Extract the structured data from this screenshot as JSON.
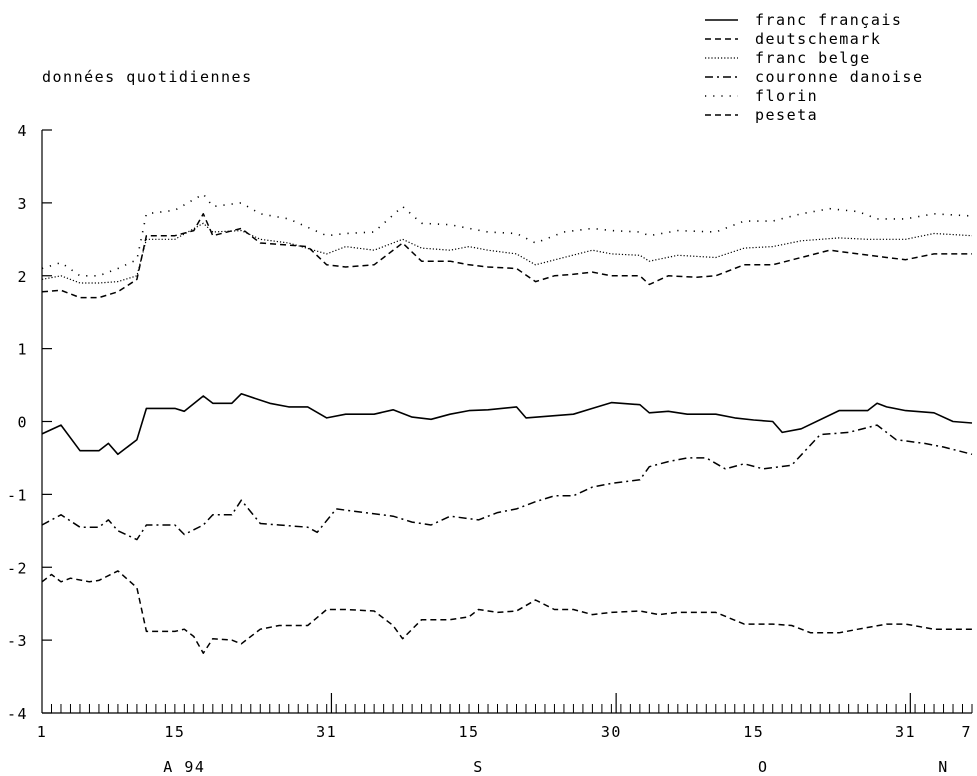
{
  "chart_data": {
    "type": "line",
    "subtitle": "données quotidiennes",
    "x_day_ticks": [
      "1",
      "15",
      "31",
      "15",
      "30",
      "15",
      "31",
      "7"
    ],
    "x_month_labels": [
      "A 94",
      "S",
      "O",
      "N"
    ],
    "y_tick_labels": [
      "4",
      "3",
      "2",
      "1",
      "0",
      "-1",
      "-2",
      "-3",
      "-4"
    ],
    "ylim": [
      -4,
      4
    ],
    "grid": false,
    "legend_position": "top-right",
    "x_start_date": "1994-08-01",
    "x_end_date": "1994-11-07",
    "series": [
      {
        "name": "franc français",
        "line_style": "solid",
        "points": [
          [
            "1994-08-01",
            -0.17
          ],
          [
            "1994-08-03",
            -0.05
          ],
          [
            "1994-08-05",
            -0.4
          ],
          [
            "1994-08-07",
            -0.4
          ],
          [
            "1994-08-08",
            -0.3
          ],
          [
            "1994-08-09",
            -0.45
          ],
          [
            "1994-08-11",
            -0.25
          ],
          [
            "1994-08-12",
            0.18
          ],
          [
            "1994-08-15",
            0.18
          ],
          [
            "1994-08-16",
            0.14
          ],
          [
            "1994-08-18",
            0.35
          ],
          [
            "1994-08-19",
            0.25
          ],
          [
            "1994-08-21",
            0.25
          ],
          [
            "1994-08-22",
            0.38
          ],
          [
            "1994-08-25",
            0.25
          ],
          [
            "1994-08-27",
            0.2
          ],
          [
            "1994-08-29",
            0.2
          ],
          [
            "1994-08-31",
            0.05
          ],
          [
            "1994-09-02",
            0.1
          ],
          [
            "1994-09-05",
            0.1
          ],
          [
            "1994-09-07",
            0.16
          ],
          [
            "1994-09-09",
            0.06
          ],
          [
            "1994-09-11",
            0.03
          ],
          [
            "1994-09-13",
            0.1
          ],
          [
            "1994-09-15",
            0.15
          ],
          [
            "1994-09-17",
            0.16
          ],
          [
            "1994-09-20",
            0.2
          ],
          [
            "1994-09-21",
            0.05
          ],
          [
            "1994-09-24",
            0.08
          ],
          [
            "1994-09-26",
            0.1
          ],
          [
            "1994-09-28",
            0.18
          ],
          [
            "1994-09-30",
            0.26
          ],
          [
            "1994-10-03",
            0.23
          ],
          [
            "1994-10-04",
            0.12
          ],
          [
            "1994-10-06",
            0.14
          ],
          [
            "1994-10-08",
            0.1
          ],
          [
            "1994-10-11",
            0.1
          ],
          [
            "1994-10-13",
            0.05
          ],
          [
            "1994-10-15",
            0.02
          ],
          [
            "1994-10-17",
            0.0
          ],
          [
            "1994-10-18",
            -0.15
          ],
          [
            "1994-10-20",
            -0.1
          ],
          [
            "1994-10-24",
            0.15
          ],
          [
            "1994-10-27",
            0.15
          ],
          [
            "1994-10-28",
            0.25
          ],
          [
            "1994-10-29",
            0.2
          ],
          [
            "1994-10-31",
            0.15
          ],
          [
            "1994-11-03",
            0.12
          ],
          [
            "1994-11-05",
            0.0
          ],
          [
            "1994-11-07",
            -0.02
          ]
        ]
      },
      {
        "name": "deutschemark",
        "line_style": "dashed",
        "points": [
          [
            "1994-08-01",
            1.78
          ],
          [
            "1994-08-03",
            1.8
          ],
          [
            "1994-08-05",
            1.7
          ],
          [
            "1994-08-07",
            1.7
          ],
          [
            "1994-08-09",
            1.78
          ],
          [
            "1994-08-11",
            1.95
          ],
          [
            "1994-08-12",
            2.55
          ],
          [
            "1994-08-15",
            2.55
          ],
          [
            "1994-08-17",
            2.62
          ],
          [
            "1994-08-18",
            2.85
          ],
          [
            "1994-08-19",
            2.55
          ],
          [
            "1994-08-22",
            2.65
          ],
          [
            "1994-08-24",
            2.45
          ],
          [
            "1994-08-27",
            2.42
          ],
          [
            "1994-08-29",
            2.4
          ],
          [
            "1994-08-31",
            2.15
          ],
          [
            "1994-09-02",
            2.12
          ],
          [
            "1994-09-05",
            2.15
          ],
          [
            "1994-09-08",
            2.45
          ],
          [
            "1994-09-10",
            2.2
          ],
          [
            "1994-09-13",
            2.2
          ],
          [
            "1994-09-15",
            2.15
          ],
          [
            "1994-09-17",
            2.12
          ],
          [
            "1994-09-20",
            2.1
          ],
          [
            "1994-09-22",
            1.92
          ],
          [
            "1994-09-24",
            2.0
          ],
          [
            "1994-09-26",
            2.02
          ],
          [
            "1994-09-28",
            2.05
          ],
          [
            "1994-09-30",
            2.0
          ],
          [
            "1994-10-03",
            2.0
          ],
          [
            "1994-10-04",
            1.88
          ],
          [
            "1994-10-06",
            2.0
          ],
          [
            "1994-10-09",
            1.98
          ],
          [
            "1994-10-11",
            2.0
          ],
          [
            "1994-10-14",
            2.15
          ],
          [
            "1994-10-17",
            2.15
          ],
          [
            "1994-10-20",
            2.25
          ],
          [
            "1994-10-23",
            2.35
          ],
          [
            "1994-10-26",
            2.3
          ],
          [
            "1994-10-29",
            2.25
          ],
          [
            "1994-10-31",
            2.22
          ],
          [
            "1994-11-03",
            2.3
          ],
          [
            "1994-11-07",
            2.3
          ]
        ]
      },
      {
        "name": "franc belge",
        "line_style": "dense-dotted",
        "points": [
          [
            "1994-08-01",
            1.95
          ],
          [
            "1994-08-03",
            2.0
          ],
          [
            "1994-08-05",
            1.9
          ],
          [
            "1994-08-07",
            1.9
          ],
          [
            "1994-08-09",
            1.92
          ],
          [
            "1994-08-11",
            2.0
          ],
          [
            "1994-08-12",
            2.5
          ],
          [
            "1994-08-15",
            2.5
          ],
          [
            "1994-08-18",
            2.72
          ],
          [
            "1994-08-19",
            2.6
          ],
          [
            "1994-08-22",
            2.62
          ],
          [
            "1994-08-24",
            2.5
          ],
          [
            "1994-08-27",
            2.45
          ],
          [
            "1994-08-31",
            2.3
          ],
          [
            "1994-09-02",
            2.4
          ],
          [
            "1994-09-05",
            2.35
          ],
          [
            "1994-09-08",
            2.5
          ],
          [
            "1994-09-10",
            2.38
          ],
          [
            "1994-09-13",
            2.35
          ],
          [
            "1994-09-15",
            2.4
          ],
          [
            "1994-09-17",
            2.35
          ],
          [
            "1994-09-20",
            2.3
          ],
          [
            "1994-09-22",
            2.15
          ],
          [
            "1994-09-25",
            2.25
          ],
          [
            "1994-09-28",
            2.35
          ],
          [
            "1994-09-30",
            2.3
          ],
          [
            "1994-10-03",
            2.28
          ],
          [
            "1994-10-04",
            2.2
          ],
          [
            "1994-10-07",
            2.28
          ],
          [
            "1994-10-11",
            2.25
          ],
          [
            "1994-10-14",
            2.38
          ],
          [
            "1994-10-17",
            2.4
          ],
          [
            "1994-10-20",
            2.48
          ],
          [
            "1994-10-24",
            2.52
          ],
          [
            "1994-10-27",
            2.5
          ],
          [
            "1994-10-31",
            2.5
          ],
          [
            "1994-11-03",
            2.58
          ],
          [
            "1994-11-07",
            2.55
          ]
        ]
      },
      {
        "name": "couronne danoise",
        "line_style": "dash-dot",
        "points": [
          [
            "1994-08-01",
            -1.42
          ],
          [
            "1994-08-03",
            -1.28
          ],
          [
            "1994-08-05",
            -1.45
          ],
          [
            "1994-08-07",
            -1.45
          ],
          [
            "1994-08-08",
            -1.35
          ],
          [
            "1994-08-09",
            -1.5
          ],
          [
            "1994-08-11",
            -1.62
          ],
          [
            "1994-08-12",
            -1.42
          ],
          [
            "1994-08-15",
            -1.42
          ],
          [
            "1994-08-16",
            -1.55
          ],
          [
            "1994-08-18",
            -1.42
          ],
          [
            "1994-08-19",
            -1.28
          ],
          [
            "1994-08-21",
            -1.28
          ],
          [
            "1994-08-22",
            -1.08
          ],
          [
            "1994-08-24",
            -1.4
          ],
          [
            "1994-08-26",
            -1.42
          ],
          [
            "1994-08-29",
            -1.45
          ],
          [
            "1994-08-30",
            -1.52
          ],
          [
            "1994-09-01",
            -1.2
          ],
          [
            "1994-09-04",
            -1.25
          ],
          [
            "1994-09-07",
            -1.3
          ],
          [
            "1994-09-09",
            -1.38
          ],
          [
            "1994-09-11",
            -1.42
          ],
          [
            "1994-09-13",
            -1.3
          ],
          [
            "1994-09-16",
            -1.35
          ],
          [
            "1994-09-18",
            -1.25
          ],
          [
            "1994-09-20",
            -1.2
          ],
          [
            "1994-09-22",
            -1.1
          ],
          [
            "1994-09-24",
            -1.02
          ],
          [
            "1994-09-26",
            -1.02
          ],
          [
            "1994-09-28",
            -0.9
          ],
          [
            "1994-09-30",
            -0.85
          ],
          [
            "1994-10-03",
            -0.8
          ],
          [
            "1994-10-04",
            -0.62
          ],
          [
            "1994-10-06",
            -0.55
          ],
          [
            "1994-10-08",
            -0.5
          ],
          [
            "1994-10-10",
            -0.5
          ],
          [
            "1994-10-12",
            -0.65
          ],
          [
            "1994-10-14",
            -0.58
          ],
          [
            "1994-10-16",
            -0.65
          ],
          [
            "1994-10-19",
            -0.6
          ],
          [
            "1994-10-22",
            -0.18
          ],
          [
            "1994-10-25",
            -0.15
          ],
          [
            "1994-10-28",
            -0.05
          ],
          [
            "1994-10-30",
            -0.25
          ],
          [
            "1994-11-02",
            -0.3
          ],
          [
            "1994-11-04",
            -0.35
          ],
          [
            "1994-11-07",
            -0.45
          ]
        ]
      },
      {
        "name": "florin",
        "line_style": "sparse-dotted",
        "points": [
          [
            "1994-08-01",
            2.1
          ],
          [
            "1994-08-03",
            2.18
          ],
          [
            "1994-08-05",
            2.0
          ],
          [
            "1994-08-07",
            2.0
          ],
          [
            "1994-08-09",
            2.1
          ],
          [
            "1994-08-11",
            2.22
          ],
          [
            "1994-08-12",
            2.85
          ],
          [
            "1994-08-15",
            2.9
          ],
          [
            "1994-08-18",
            3.12
          ],
          [
            "1994-08-19",
            2.95
          ],
          [
            "1994-08-22",
            3.0
          ],
          [
            "1994-08-24",
            2.85
          ],
          [
            "1994-08-27",
            2.78
          ],
          [
            "1994-08-31",
            2.55
          ],
          [
            "1994-09-02",
            2.58
          ],
          [
            "1994-09-05",
            2.6
          ],
          [
            "1994-09-08",
            2.95
          ],
          [
            "1994-09-10",
            2.72
          ],
          [
            "1994-09-13",
            2.7
          ],
          [
            "1994-09-15",
            2.65
          ],
          [
            "1994-09-17",
            2.6
          ],
          [
            "1994-09-20",
            2.58
          ],
          [
            "1994-09-22",
            2.45
          ],
          [
            "1994-09-25",
            2.6
          ],
          [
            "1994-09-28",
            2.65
          ],
          [
            "1994-09-30",
            2.62
          ],
          [
            "1994-10-03",
            2.6
          ],
          [
            "1994-10-04",
            2.55
          ],
          [
            "1994-10-07",
            2.62
          ],
          [
            "1994-10-11",
            2.6
          ],
          [
            "1994-10-14",
            2.75
          ],
          [
            "1994-10-17",
            2.75
          ],
          [
            "1994-10-20",
            2.85
          ],
          [
            "1994-10-23",
            2.92
          ],
          [
            "1994-10-26",
            2.88
          ],
          [
            "1994-10-28",
            2.78
          ],
          [
            "1994-10-31",
            2.78
          ],
          [
            "1994-11-03",
            2.85
          ],
          [
            "1994-11-07",
            2.82
          ]
        ]
      },
      {
        "name": "peseta",
        "line_style": "dashed",
        "points": [
          [
            "1994-08-01",
            -2.2
          ],
          [
            "1994-08-02",
            -2.1
          ],
          [
            "1994-08-03",
            -2.2
          ],
          [
            "1994-08-04",
            -2.15
          ],
          [
            "1994-08-06",
            -2.2
          ],
          [
            "1994-08-07",
            -2.18
          ],
          [
            "1994-08-09",
            -2.05
          ],
          [
            "1994-08-11",
            -2.28
          ],
          [
            "1994-08-12",
            -2.88
          ],
          [
            "1994-08-15",
            -2.88
          ],
          [
            "1994-08-16",
            -2.85
          ],
          [
            "1994-08-17",
            -2.95
          ],
          [
            "1994-08-18",
            -3.18
          ],
          [
            "1994-08-19",
            -2.98
          ],
          [
            "1994-08-21",
            -3.0
          ],
          [
            "1994-08-22",
            -3.05
          ],
          [
            "1994-08-24",
            -2.85
          ],
          [
            "1994-08-26",
            -2.8
          ],
          [
            "1994-08-29",
            -2.8
          ],
          [
            "1994-08-31",
            -2.58
          ],
          [
            "1994-09-02",
            -2.58
          ],
          [
            "1994-09-05",
            -2.6
          ],
          [
            "1994-09-07",
            -2.8
          ],
          [
            "1994-09-08",
            -2.98
          ],
          [
            "1994-09-10",
            -2.72
          ],
          [
            "1994-09-13",
            -2.72
          ],
          [
            "1994-09-15",
            -2.68
          ],
          [
            "1994-09-16",
            -2.58
          ],
          [
            "1994-09-18",
            -2.62
          ],
          [
            "1994-09-20",
            -2.6
          ],
          [
            "1994-09-22",
            -2.45
          ],
          [
            "1994-09-24",
            -2.58
          ],
          [
            "1994-09-26",
            -2.58
          ],
          [
            "1994-09-28",
            -2.65
          ],
          [
            "1994-09-30",
            -2.62
          ],
          [
            "1994-10-03",
            -2.6
          ],
          [
            "1994-10-05",
            -2.65
          ],
          [
            "1994-10-07",
            -2.62
          ],
          [
            "1994-10-11",
            -2.62
          ],
          [
            "1994-10-14",
            -2.78
          ],
          [
            "1994-10-17",
            -2.78
          ],
          [
            "1994-10-19",
            -2.8
          ],
          [
            "1994-10-21",
            -2.9
          ],
          [
            "1994-10-24",
            -2.9
          ],
          [
            "1994-10-26",
            -2.85
          ],
          [
            "1994-10-29",
            -2.78
          ],
          [
            "1994-10-31",
            -2.78
          ],
          [
            "1994-11-03",
            -2.85
          ],
          [
            "1994-11-05",
            -2.85
          ],
          [
            "1994-11-07",
            -2.85
          ]
        ]
      }
    ]
  }
}
